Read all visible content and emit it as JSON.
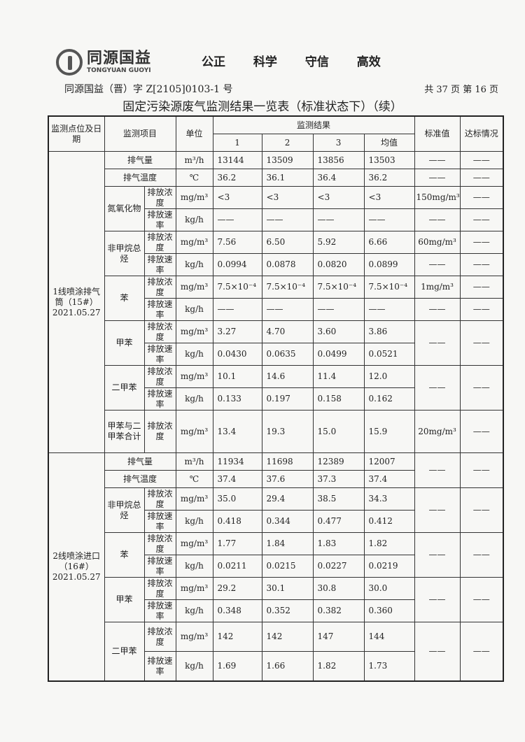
{
  "header": {
    "logo_cn": "同源国益",
    "logo_en": "TONGYUAN GUOYI",
    "slogan": [
      "公正",
      "科学",
      "守信",
      "高效"
    ],
    "doc_no": "同源国益（晋）字 Z[2105]0103-1 号",
    "page_info": "共 37 页  第 16 页",
    "title": "固定污染源废气监测结果一览表（标准状态下）（续）"
  },
  "table": {
    "headers": {
      "site": "监测点位及日期",
      "item": "监测项目",
      "unit": "单位",
      "results": "监测结果",
      "runs": [
        "1",
        "2",
        "3",
        "均值"
      ],
      "std": "标准值",
      "ok": "达标情况"
    },
    "sections": [
      {
        "site": "1线喷涂排气筒（15#）2021.05.27",
        "groups": [
          {
            "rows": [
              {
                "item": "排气量",
                "unit": "m³/h",
                "values": [
                  "13144",
                  "13509",
                  "13856",
                  "13503"
                ],
                "std": "——",
                "ok": "——"
              }
            ]
          },
          {
            "rows": [
              {
                "item": "排气温度",
                "unit": "℃",
                "values": [
                  "36.2",
                  "36.1",
                  "36.4",
                  "36.2"
                ],
                "std": "——",
                "ok": "——"
              }
            ]
          },
          {
            "item": "氮氧化物",
            "rows": [
              {
                "sub": "排放浓度",
                "unit": "mg/m³",
                "values": [
                  "<3",
                  "<3",
                  "<3",
                  "<3"
                ],
                "std": "150mg/m³",
                "ok": "——"
              },
              {
                "sub": "排放速率",
                "unit": "kg/h",
                "values": [
                  "——",
                  "——",
                  "——",
                  "——"
                ],
                "std": "——",
                "ok": "——"
              }
            ]
          },
          {
            "item": "非甲烷总烃",
            "rows": [
              {
                "sub": "排放浓度",
                "unit": "mg/m³",
                "values": [
                  "7.56",
                  "6.50",
                  "5.92",
                  "6.66"
                ],
                "std": "60mg/m³",
                "ok": "——"
              },
              {
                "sub": "排放速率",
                "unit": "kg/h",
                "values": [
                  "0.0994",
                  "0.0878",
                  "0.0820",
                  "0.0899"
                ],
                "std": "——",
                "ok": "——"
              }
            ]
          },
          {
            "item": "苯",
            "rows": [
              {
                "sub": "排放浓度",
                "unit": "mg/m³",
                "values": [
                  "7.5×10⁻⁴",
                  "7.5×10⁻⁴",
                  "7.5×10⁻⁴",
                  "7.5×10⁻⁴"
                ],
                "std": "1mg/m³",
                "ok": "——"
              },
              {
                "sub": "排放速率",
                "unit": "kg/h",
                "values": [
                  "——",
                  "——",
                  "——",
                  "——"
                ],
                "std": "——",
                "ok": "——"
              }
            ]
          },
          {
            "item": "甲苯",
            "std": "——",
            "ok": "——",
            "rows": [
              {
                "sub": "排放浓度",
                "unit": "mg/m³",
                "values": [
                  "3.27",
                  "4.70",
                  "3.60",
                  "3.86"
                ]
              },
              {
                "sub": "排放速率",
                "unit": "kg/h",
                "values": [
                  "0.0430",
                  "0.0635",
                  "0.0499",
                  "0.0521"
                ]
              }
            ]
          },
          {
            "item": "二甲苯",
            "std": "——",
            "ok": "——",
            "rows": [
              {
                "sub": "排放浓度",
                "unit": "mg/m³",
                "values": [
                  "10.1",
                  "14.6",
                  "11.4",
                  "12.0"
                ]
              },
              {
                "sub": "排放速率",
                "unit": "kg/h",
                "values": [
                  "0.133",
                  "0.197",
                  "0.158",
                  "0.162"
                ]
              }
            ]
          },
          {
            "item": "甲苯与二甲苯合计",
            "tall": true,
            "rows": [
              {
                "sub": "排放浓度",
                "unit": "mg/m³",
                "values": [
                  "13.4",
                  "19.3",
                  "15.0",
                  "15.9"
                ],
                "std": "20mg/m³",
                "ok": "——"
              }
            ]
          }
        ]
      },
      {
        "site": "2线喷涂进口（16#）2021.05.27",
        "groups": [
          {
            "std": "——",
            "ok": "——",
            "rows": [
              {
                "item": "排气量",
                "unit": "m³/h",
                "values": [
                  "11934",
                  "11698",
                  "12389",
                  "12007"
                ]
              },
              {
                "item": "排气温度",
                "unit": "℃",
                "values": [
                  "37.4",
                  "37.6",
                  "37.3",
                  "37.4"
                ]
              }
            ]
          },
          {
            "item": "非甲烷总烃",
            "std": "——",
            "ok": "——",
            "rows": [
              {
                "sub": "排放浓度",
                "unit": "mg/m³",
                "values": [
                  "35.0",
                  "29.4",
                  "38.5",
                  "34.3"
                ]
              },
              {
                "sub": "排放速率",
                "unit": "kg/h",
                "values": [
                  "0.418",
                  "0.344",
                  "0.477",
                  "0.412"
                ]
              }
            ]
          },
          {
            "item": "苯",
            "std": "——",
            "ok": "——",
            "rows": [
              {
                "sub": "排放浓度",
                "unit": "mg/m³",
                "values": [
                  "1.77",
                  "1.84",
                  "1.83",
                  "1.82"
                ]
              },
              {
                "sub": "排放速率",
                "unit": "kg/h",
                "values": [
                  "0.0211",
                  "0.0215",
                  "0.0227",
                  "0.0219"
                ]
              }
            ]
          },
          {
            "item": "甲苯",
            "std": "——",
            "ok": "——",
            "rows": [
              {
                "sub": "排放浓度",
                "unit": "mg/m³",
                "values": [
                  "29.2",
                  "30.1",
                  "30.8",
                  "30.0"
                ]
              },
              {
                "sub": "排放速率",
                "unit": "kg/h",
                "values": [
                  "0.348",
                  "0.352",
                  "0.382",
                  "0.360"
                ]
              }
            ]
          },
          {
            "item": "二甲苯",
            "std": "——",
            "ok": "——",
            "rows": [
              {
                "sub": "排放浓度",
                "unit": "mg/m³",
                "values": [
                  "142",
                  "142",
                  "147",
                  "144"
                ]
              },
              {
                "sub": "排放速率",
                "unit": "kg/h",
                "values": [
                  "1.69",
                  "1.66",
                  "1.82",
                  "1.73"
                ]
              }
            ]
          }
        ]
      }
    ]
  }
}
